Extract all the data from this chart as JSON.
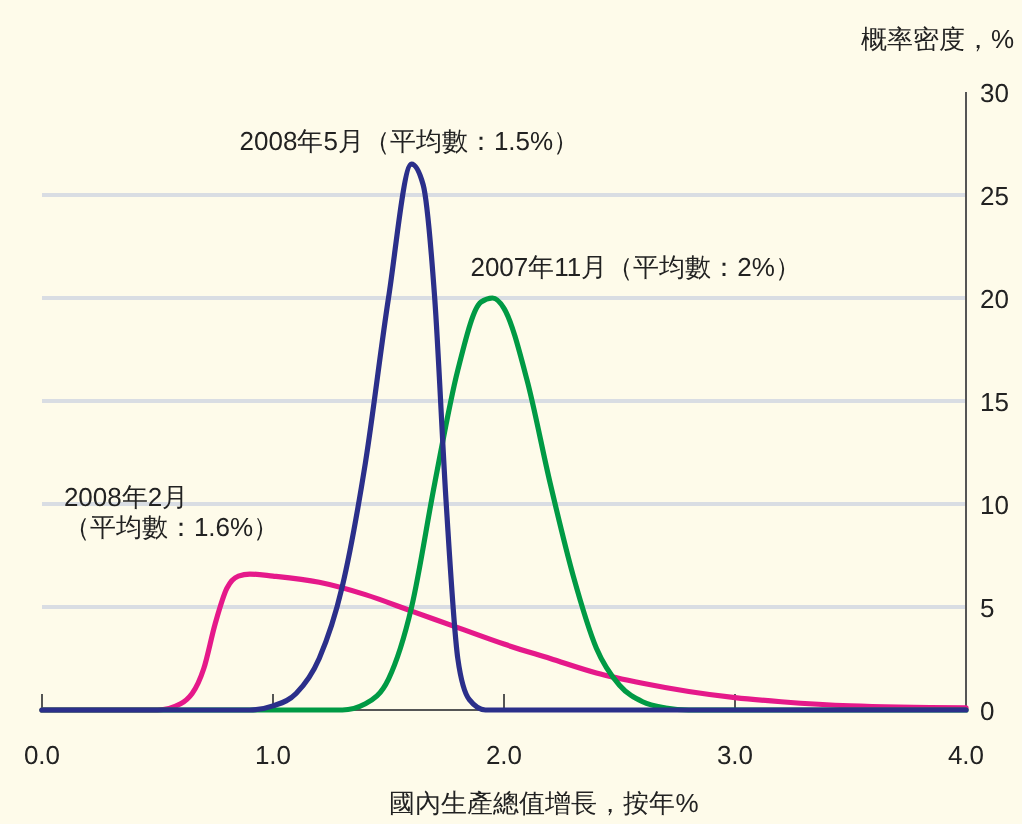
{
  "chart_data": {
    "type": "line",
    "xlabel": "國內生產總值增長，按年%",
    "ylabel": "概率密度，%",
    "xlim": [
      0,
      4
    ],
    "xticks": [
      {
        "value": 0,
        "label": "0.0"
      },
      {
        "value": 1,
        "label": "1.0"
      },
      {
        "value": 2,
        "label": "2.0"
      },
      {
        "value": 3,
        "label": "3.0"
      },
      {
        "value": 4,
        "label": "4.0"
      }
    ],
    "ylim": [
      0,
      30
    ],
    "yticks": [
      0,
      5,
      10,
      15,
      20,
      25,
      30
    ],
    "grid": "y",
    "legend": false,
    "marker": "none",
    "line_style": "solid",
    "series": [
      {
        "name": "2008年2月（平均數：1.6%）",
        "color": "#e5198a",
        "x": [
          0,
          0.5,
          0.6,
          0.7,
          0.75,
          0.8,
          0.85,
          0.9,
          1.0,
          1.2,
          1.4,
          1.6,
          1.8,
          2.0,
          2.2,
          2.4,
          2.6,
          2.8,
          3.0,
          3.2,
          3.5,
          4.0
        ],
        "values": [
          0,
          0,
          0.3,
          2,
          4.2,
          5.9,
          6.5,
          6.6,
          6.5,
          6.2,
          5.6,
          4.8,
          4.0,
          3.2,
          2.5,
          1.8,
          1.3,
          0.9,
          0.6,
          0.4,
          0.2,
          0.1
        ]
      },
      {
        "name": "2007年11月（平均數：2%）",
        "color": "#009a44",
        "x": [
          0,
          1.3,
          1.4,
          1.5,
          1.6,
          1.7,
          1.8,
          1.9,
          1.95,
          2.0,
          2.1,
          2.2,
          2.3,
          2.4,
          2.5,
          2.6,
          2.7,
          2.8,
          4.0
        ],
        "values": [
          0,
          0,
          0.3,
          1.5,
          5,
          11,
          16.5,
          19.8,
          20,
          19.5,
          16,
          11,
          6.5,
          3,
          1.2,
          0.4,
          0.1,
          0,
          0
        ]
      },
      {
        "name": "2008年5月（平均數：1.5%）",
        "color": "#2b2f8a",
        "x": [
          0,
          0.9,
          1.0,
          1.1,
          1.2,
          1.3,
          1.4,
          1.5,
          1.6,
          1.65,
          1.7,
          1.75,
          1.8,
          1.85,
          1.92,
          2.0,
          4.0
        ],
        "values": [
          0,
          0,
          0.2,
          0.8,
          2.5,
          6,
          12,
          20,
          26.5,
          25.5,
          20,
          10,
          2.5,
          0.5,
          0,
          0,
          0
        ]
      }
    ]
  }
}
